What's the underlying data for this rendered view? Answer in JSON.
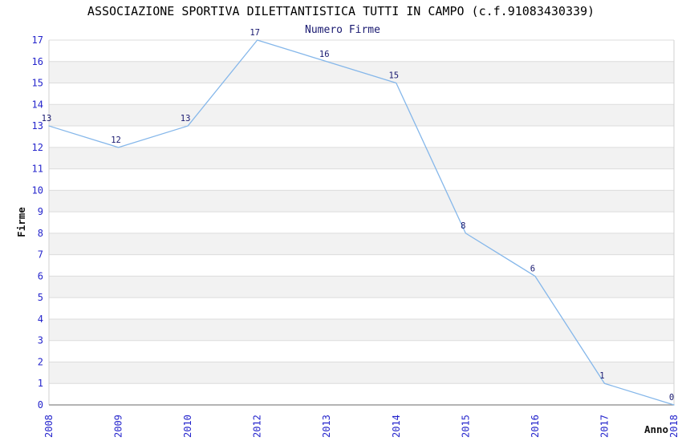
{
  "header": {
    "title": "ASSOCIAZIONE SPORTIVA DILETTANTISTICA TUTTI IN CAMPO (c.f.91083430339)"
  },
  "chart_data": {
    "type": "line",
    "title": "Numero Firme",
    "xlabel": "Anno",
    "ylabel": "Firme",
    "categories": [
      "2008",
      "2009",
      "2010",
      "2012",
      "2013",
      "2014",
      "2015",
      "2016",
      "2017",
      "2018"
    ],
    "values": [
      13,
      12,
      13,
      17,
      16,
      15,
      8,
      6,
      1,
      0
    ],
    "ylim": [
      0,
      17
    ],
    "y_tick_step": 1,
    "grid": "horizontal-only",
    "legend": "none",
    "point_labels_shown": true,
    "x_tick_rotation_degrees": 90,
    "colors": {
      "line": "#85b7ea",
      "tick_labels": "#2525cc",
      "point_labels": "#191970",
      "subtitle_text": "#191970",
      "band": "#f2f2f2",
      "gridline": "#dcdcdc",
      "plot_border": "#d0d0d0",
      "axis_line": "#888888",
      "title_text": "#000000"
    }
  }
}
